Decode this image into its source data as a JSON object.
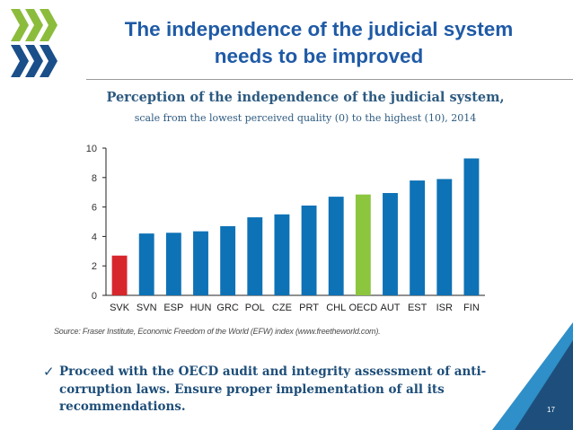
{
  "slide": {
    "title_line1": "The independence of the judicial system",
    "title_line2": "needs to be improved",
    "source": "Source: Fraser Institute, Economic Freedom of the World (EFW) index (www.freetheworld.com).",
    "bullet": "Proceed with the OECD audit and integrity assessment of anti-corruption laws. Ensure proper implementation of all its recommendations.",
    "bullet_line1": "Proceed with the OECD audit and integrity assessment of anti-",
    "bullet_line2": "corruption laws. Ensure proper implementation of all its",
    "bullet_line3": "recommendations.",
    "page_number": "17",
    "check_icon": "checkmark-icon"
  },
  "colors": {
    "title": "#1f5aa6",
    "bar_default": "#0e72b6",
    "bar_svk": "#d7262c",
    "bar_oecd": "#8cc63f",
    "corner_dark": "#1e4f7c",
    "corner_light": "#2f8fc8",
    "logo_green": "#8cbc3c",
    "logo_blue": "#1a4f8a"
  },
  "chart_data": {
    "type": "bar",
    "title": "Perception of the independence of the judicial system,",
    "subtitle": "scale  from the lowest perceived quality (0) to the highest (10), 2014",
    "categories": [
      "SVK",
      "SVN",
      "ESP",
      "HUN",
      "GRC",
      "POL",
      "CZE",
      "PRT",
      "CHL",
      "OECD",
      "AUT",
      "EST",
      "ISR",
      "FIN"
    ],
    "values": [
      2.7,
      4.2,
      4.25,
      4.35,
      4.7,
      5.3,
      5.5,
      6.1,
      6.7,
      6.85,
      6.95,
      7.8,
      7.9,
      9.3
    ],
    "highlight": {
      "SVK": "red",
      "OECD": "green"
    },
    "ylim": [
      0,
      10
    ],
    "yticks": [
      0,
      2,
      4,
      6,
      8,
      10
    ],
    "grid": false,
    "xlabel": "",
    "ylabel": ""
  }
}
